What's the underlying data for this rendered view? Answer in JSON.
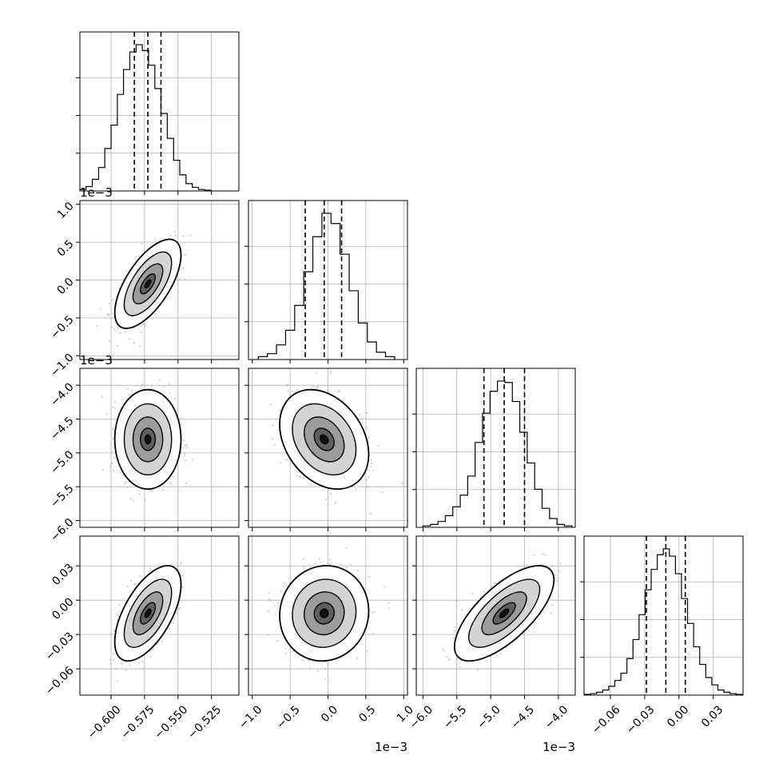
{
  "chart_data": {
    "type": "corner",
    "grid": true,
    "parameters": [
      {
        "range": [
          -0.6233,
          -0.5045
        ],
        "ticks": [
          -0.6,
          -0.575,
          -0.55,
          -0.525
        ],
        "tick_labels": [
          "−0.600",
          "−0.575",
          "−0.550",
          "−0.525"
        ],
        "offset_text": ""
      },
      {
        "range": [
          -1.05,
          1.05
        ],
        "ticks": [
          -1.0,
          -0.5,
          0.0,
          0.5,
          1.0
        ],
        "tick_labels": [
          "−1.0",
          "−0.5",
          "0.0",
          "0.5",
          "1.0"
        ],
        "offset_text": "1e−3"
      },
      {
        "range": [
          -6.1,
          -3.75
        ],
        "ticks": [
          -6.0,
          -5.5,
          -5.0,
          -4.5,
          -4.0
        ],
        "tick_labels": [
          "−6.0",
          "−5.5",
          "−5.0",
          "−4.5",
          "−4.0"
        ],
        "offset_text": "1e−3"
      },
      {
        "range": [
          -0.083,
          0.056
        ],
        "ticks": [
          -0.06,
          -0.03,
          0.0,
          0.03
        ],
        "tick_labels": [
          "−0.06",
          "−0.03",
          "0.00",
          "0.03"
        ],
        "offset_text": ""
      }
    ],
    "y_offset_texts": [
      "1e−3",
      "1e−3"
    ],
    "histograms": [
      {
        "bins": [
          -0.6233,
          -0.6187,
          -0.614,
          -0.6093,
          -0.6047,
          -0.6,
          -0.5953,
          -0.5907,
          -0.586,
          -0.5813,
          -0.5767,
          -0.572,
          -0.5673,
          -0.5627,
          -0.558,
          -0.5533,
          -0.5487,
          -0.544,
          -0.5393,
          -0.5347,
          -0.53,
          -0.5253
        ],
        "counts": [
          0.01,
          0.03,
          0.08,
          0.16,
          0.29,
          0.45,
          0.66,
          0.83,
          0.95,
          1.0,
          0.96,
          0.86,
          0.7,
          0.53,
          0.36,
          0.21,
          0.11,
          0.05,
          0.025,
          0.01,
          0.005
        ],
        "quantiles": [
          -0.5826,
          -0.5725,
          -0.5627
        ]
      },
      {
        "bins": [
          -0.92,
          -0.8,
          -0.68,
          -0.56,
          -0.44,
          -0.32,
          -0.2,
          -0.08,
          0.04,
          0.16,
          0.28,
          0.4,
          0.52,
          0.64,
          0.76,
          0.88
        ],
        "counts": [
          0.02,
          0.04,
          0.1,
          0.2,
          0.37,
          0.6,
          0.84,
          1.0,
          0.93,
          0.72,
          0.47,
          0.25,
          0.12,
          0.05,
          0.02
        ],
        "quantiles": [
          -0.3,
          -0.05,
          0.18
        ]
      },
      {
        "bins": [
          -6.0,
          -5.89,
          -5.78,
          -5.67,
          -5.56,
          -5.45,
          -5.34,
          -5.23,
          -5.12,
          -5.01,
          -4.9,
          -4.79,
          -4.68,
          -4.57,
          -4.46,
          -4.35,
          -4.24,
          -4.13,
          -4.02,
          -3.91,
          -3.8
        ],
        "counts": [
          0.01,
          0.02,
          0.04,
          0.08,
          0.14,
          0.22,
          0.35,
          0.58,
          0.78,
          0.93,
          1.0,
          0.99,
          0.86,
          0.65,
          0.44,
          0.26,
          0.13,
          0.06,
          0.02,
          0.01
        ],
        "quantiles": [
          -5.1,
          -4.8,
          -4.5
        ]
      },
      {
        "bins": [
          -0.0826,
          -0.0773,
          -0.072,
          -0.0667,
          -0.0614,
          -0.0561,
          -0.0508,
          -0.0455,
          -0.0402,
          -0.0349,
          -0.0296,
          -0.0243,
          -0.019,
          -0.0137,
          -0.0084,
          -0.0031,
          0.0022,
          0.0075,
          0.0128,
          0.0181,
          0.0234,
          0.0287,
          0.034,
          0.0393,
          0.0446,
          0.0499,
          0.0552
        ],
        "counts": [
          0.005,
          0.01,
          0.02,
          0.035,
          0.06,
          0.1,
          0.15,
          0.25,
          0.38,
          0.55,
          0.72,
          0.86,
          0.96,
          1.0,
          0.95,
          0.83,
          0.66,
          0.49,
          0.33,
          0.21,
          0.12,
          0.07,
          0.035,
          0.02,
          0.01,
          0.005
        ],
        "quantiles": [
          -0.0285,
          -0.0115,
          0.0055
        ]
      }
    ],
    "pairs": [
      {
        "x": 0,
        "y": 1,
        "mean": [
          -0.5725,
          -0.05
        ],
        "sd": [
          0.0101,
          0.24
        ],
        "rho": 0.65
      },
      {
        "x": 0,
        "y": 2,
        "mean": [
          -0.5725,
          -4.8
        ],
        "sd": [
          0.0101,
          0.3
        ],
        "rho": 0.0
      },
      {
        "x": 1,
        "y": 2,
        "mean": [
          -0.05,
          -4.8
        ],
        "sd": [
          0.24,
          0.3
        ],
        "rho": -0.3
      },
      {
        "x": 0,
        "y": 3,
        "mean": [
          -0.5725,
          -0.0115
        ],
        "sd": [
          0.0101,
          0.017
        ],
        "rho": 0.6
      },
      {
        "x": 1,
        "y": 3,
        "mean": [
          -0.05,
          -0.0115
        ],
        "sd": [
          0.24,
          0.017
        ],
        "rho": 0.05
      },
      {
        "x": 2,
        "y": 3,
        "mean": [
          -4.8,
          -0.0115
        ],
        "sd": [
          0.3,
          0.017
        ],
        "rho": 0.7
      }
    ]
  }
}
